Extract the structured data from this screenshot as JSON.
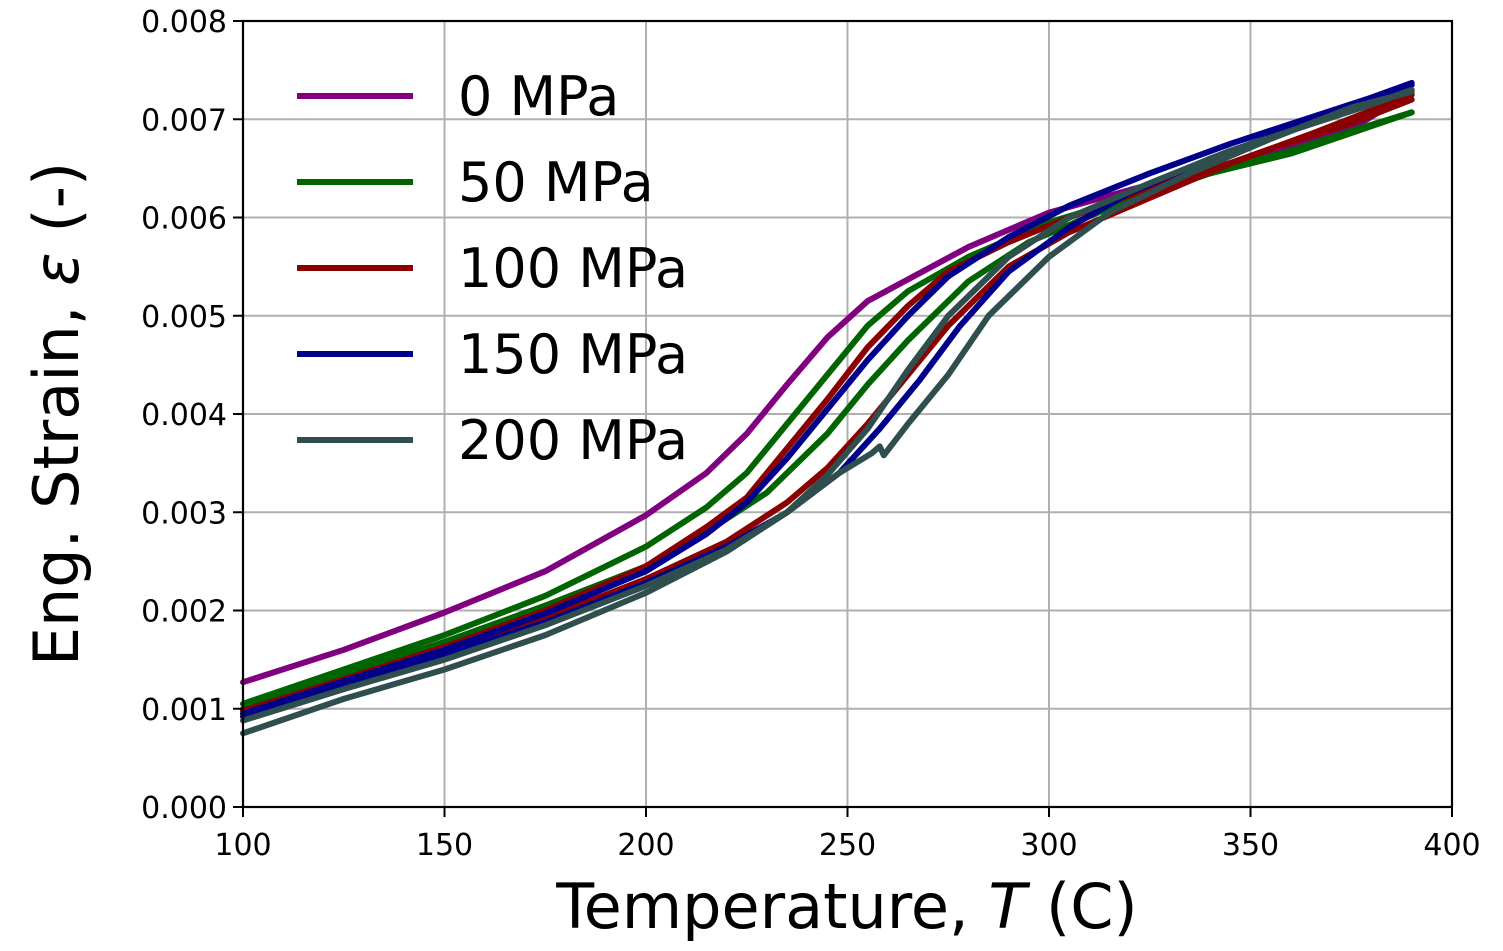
{
  "chart_data": {
    "type": "line",
    "xlabel": "Temperature, T (C)",
    "ylabel": "Eng. Strain, ε (-)",
    "xlabel_parts": {
      "pre": "Temperature, ",
      "var": "T",
      "post": " (C)"
    },
    "ylabel_parts": {
      "pre": "Eng. Strain, ",
      "var": "ε",
      "post": " (-)"
    },
    "xlim": [
      100,
      400
    ],
    "ylim": [
      0,
      0.008
    ],
    "xticks": [
      "100",
      "150",
      "200",
      "250",
      "300",
      "350",
      "400"
    ],
    "yticks": [
      "0.000",
      "0.001",
      "0.002",
      "0.003",
      "0.004",
      "0.005",
      "0.006",
      "0.007",
      "0.008"
    ],
    "grid": true,
    "legend_position": "upper-left",
    "series": [
      {
        "name": "0 MPa",
        "color": "#800080",
        "segments": [
          [
            [
              100,
              0.00127
            ],
            [
              125,
              0.0016
            ],
            [
              150,
              0.00198
            ],
            [
              175,
              0.0024
            ],
            [
              200,
              0.00297
            ],
            [
              215,
              0.0034
            ],
            [
              225,
              0.0038
            ],
            [
              235,
              0.0043
            ],
            [
              245,
              0.00478
            ],
            [
              255,
              0.00515
            ],
            [
              265,
              0.00537
            ],
            [
              280,
              0.0057
            ],
            [
              300,
              0.00605
            ],
            [
              320,
              0.00628
            ],
            [
              340,
              0.0065
            ],
            [
              360,
              0.00672
            ],
            [
              375,
              0.0069
            ],
            [
              390,
              0.00728
            ]
          ]
        ]
      },
      {
        "name": "50 MPa",
        "color": "#006400",
        "segments": [
          [
            [
              100,
              0.00105
            ],
            [
              125,
              0.0014
            ],
            [
              150,
              0.00175
            ],
            [
              175,
              0.00215
            ],
            [
              200,
              0.00265
            ],
            [
              215,
              0.00305
            ],
            [
              225,
              0.0034
            ],
            [
              235,
              0.0039
            ],
            [
              245,
              0.0044
            ],
            [
              255,
              0.0049
            ],
            [
              265,
              0.00525
            ],
            [
              280,
              0.0056
            ],
            [
              300,
              0.00595
            ],
            [
              320,
              0.0062
            ],
            [
              340,
              0.00645
            ],
            [
              360,
              0.00665
            ],
            [
              375,
              0.00686
            ],
            [
              390,
              0.00707
            ]
          ],
          [
            [
              100,
              0.001
            ],
            [
              125,
              0.00135
            ],
            [
              150,
              0.00168
            ],
            [
              175,
              0.00205
            ],
            [
              200,
              0.00245
            ],
            [
              215,
              0.0028
            ],
            [
              230,
              0.0032
            ],
            [
              245,
              0.0038
            ],
            [
              255,
              0.0043
            ],
            [
              265,
              0.00475
            ],
            [
              280,
              0.00535
            ],
            [
              295,
              0.00575
            ],
            [
              315,
              0.0061
            ],
            [
              340,
              0.00645
            ],
            [
              360,
              0.00668
            ],
            [
              375,
              0.00688
            ],
            [
              390,
              0.00707
            ]
          ]
        ]
      },
      {
        "name": "100 MPa",
        "color": "#8b0000",
        "segments": [
          [
            [
              100,
              0.00098
            ],
            [
              125,
              0.0013
            ],
            [
              150,
              0.00163
            ],
            [
              175,
              0.002
            ],
            [
              200,
              0.00245
            ],
            [
              215,
              0.00285
            ],
            [
              225,
              0.00315
            ],
            [
              235,
              0.00365
            ],
            [
              245,
              0.00415
            ],
            [
              255,
              0.00468
            ],
            [
              265,
              0.0051
            ],
            [
              275,
              0.00545
            ],
            [
              290,
              0.00575
            ],
            [
              305,
              0.006
            ],
            [
              325,
              0.0063
            ],
            [
              340,
              0.00648
            ],
            [
              355,
              0.0067
            ],
            [
              375,
              0.00696
            ],
            [
              390,
              0.0072
            ]
          ],
          [
            [
              100,
              0.00095
            ],
            [
              125,
              0.00128
            ],
            [
              150,
              0.00158
            ],
            [
              175,
              0.00192
            ],
            [
              200,
              0.00232
            ],
            [
              220,
              0.0027
            ],
            [
              235,
              0.0031
            ],
            [
              245,
              0.00345
            ],
            [
              255,
              0.0039
            ],
            [
              265,
              0.0044
            ],
            [
              275,
              0.0049
            ],
            [
              290,
              0.0055
            ],
            [
              305,
              0.00585
            ],
            [
              325,
              0.0062
            ],
            [
              345,
              0.00655
            ],
            [
              365,
              0.00685
            ],
            [
              390,
              0.00725
            ]
          ]
        ]
      },
      {
        "name": "150 MPa",
        "color": "#00008b",
        "segments": [
          [
            [
              100,
              0.00095
            ],
            [
              125,
              0.00128
            ],
            [
              150,
              0.0016
            ],
            [
              175,
              0.00197
            ],
            [
              200,
              0.0024
            ],
            [
              215,
              0.00278
            ],
            [
              225,
              0.0031
            ],
            [
              235,
              0.00355
            ],
            [
              245,
              0.00405
            ],
            [
              255,
              0.00455
            ],
            [
              265,
              0.005
            ],
            [
              275,
              0.0054
            ],
            [
              290,
              0.0058
            ],
            [
              305,
              0.00612
            ],
            [
              325,
              0.00645
            ],
            [
              345,
              0.00675
            ],
            [
              365,
              0.00702
            ],
            [
              380,
              0.00722
            ],
            [
              390,
              0.00737
            ]
          ],
          [
            [
              100,
              0.00092
            ],
            [
              125,
              0.00125
            ],
            [
              150,
              0.00155
            ],
            [
              175,
              0.00188
            ],
            [
              200,
              0.00228
            ],
            [
              220,
              0.00265
            ],
            [
              235,
              0.003
            ],
            [
              248,
              0.0034
            ],
            [
              258,
              0.00385
            ],
            [
              268,
              0.00435
            ],
            [
              278,
              0.0049
            ],
            [
              290,
              0.00545
            ],
            [
              305,
              0.0059
            ],
            [
              320,
              0.00625
            ],
            [
              340,
              0.0066
            ],
            [
              360,
              0.0069
            ],
            [
              380,
              0.00718
            ],
            [
              390,
              0.00735
            ]
          ]
        ]
      },
      {
        "name": "200 MPa",
        "color": "#2f4f4f",
        "segments": [
          [
            [
              100,
              0.00075
            ],
            [
              125,
              0.0011
            ],
            [
              150,
              0.0014
            ],
            [
              175,
              0.00175
            ],
            [
              200,
              0.00218
            ],
            [
              220,
              0.0026
            ],
            [
              235,
              0.003
            ],
            [
              248,
              0.0034
            ],
            [
              256,
              0.0036
            ],
            [
              258,
              0.00367
            ],
            [
              259,
              0.00358
            ],
            [
              265,
              0.0039
            ],
            [
              275,
              0.0044
            ],
            [
              285,
              0.005
            ],
            [
              300,
              0.0056
            ],
            [
              315,
              0.00605
            ],
            [
              335,
              0.00645
            ],
            [
              355,
              0.0068
            ],
            [
              375,
              0.00712
            ],
            [
              390,
              0.00728
            ]
          ],
          [
            [
              100,
              0.00088
            ],
            [
              125,
              0.0012
            ],
            [
              150,
              0.0015
            ],
            [
              175,
              0.00185
            ],
            [
              200,
              0.00225
            ],
            [
              220,
              0.00262
            ],
            [
              235,
              0.003
            ],
            [
              245,
              0.00338
            ],
            [
              255,
              0.00385
            ],
            [
              265,
              0.00445
            ],
            [
              275,
              0.005
            ],
            [
              290,
              0.0056
            ],
            [
              305,
              0.006
            ],
            [
              325,
              0.00635
            ],
            [
              345,
              0.00668
            ],
            [
              365,
              0.00695
            ],
            [
              380,
              0.00715
            ],
            [
              390,
              0.0073
            ]
          ]
        ]
      }
    ]
  }
}
